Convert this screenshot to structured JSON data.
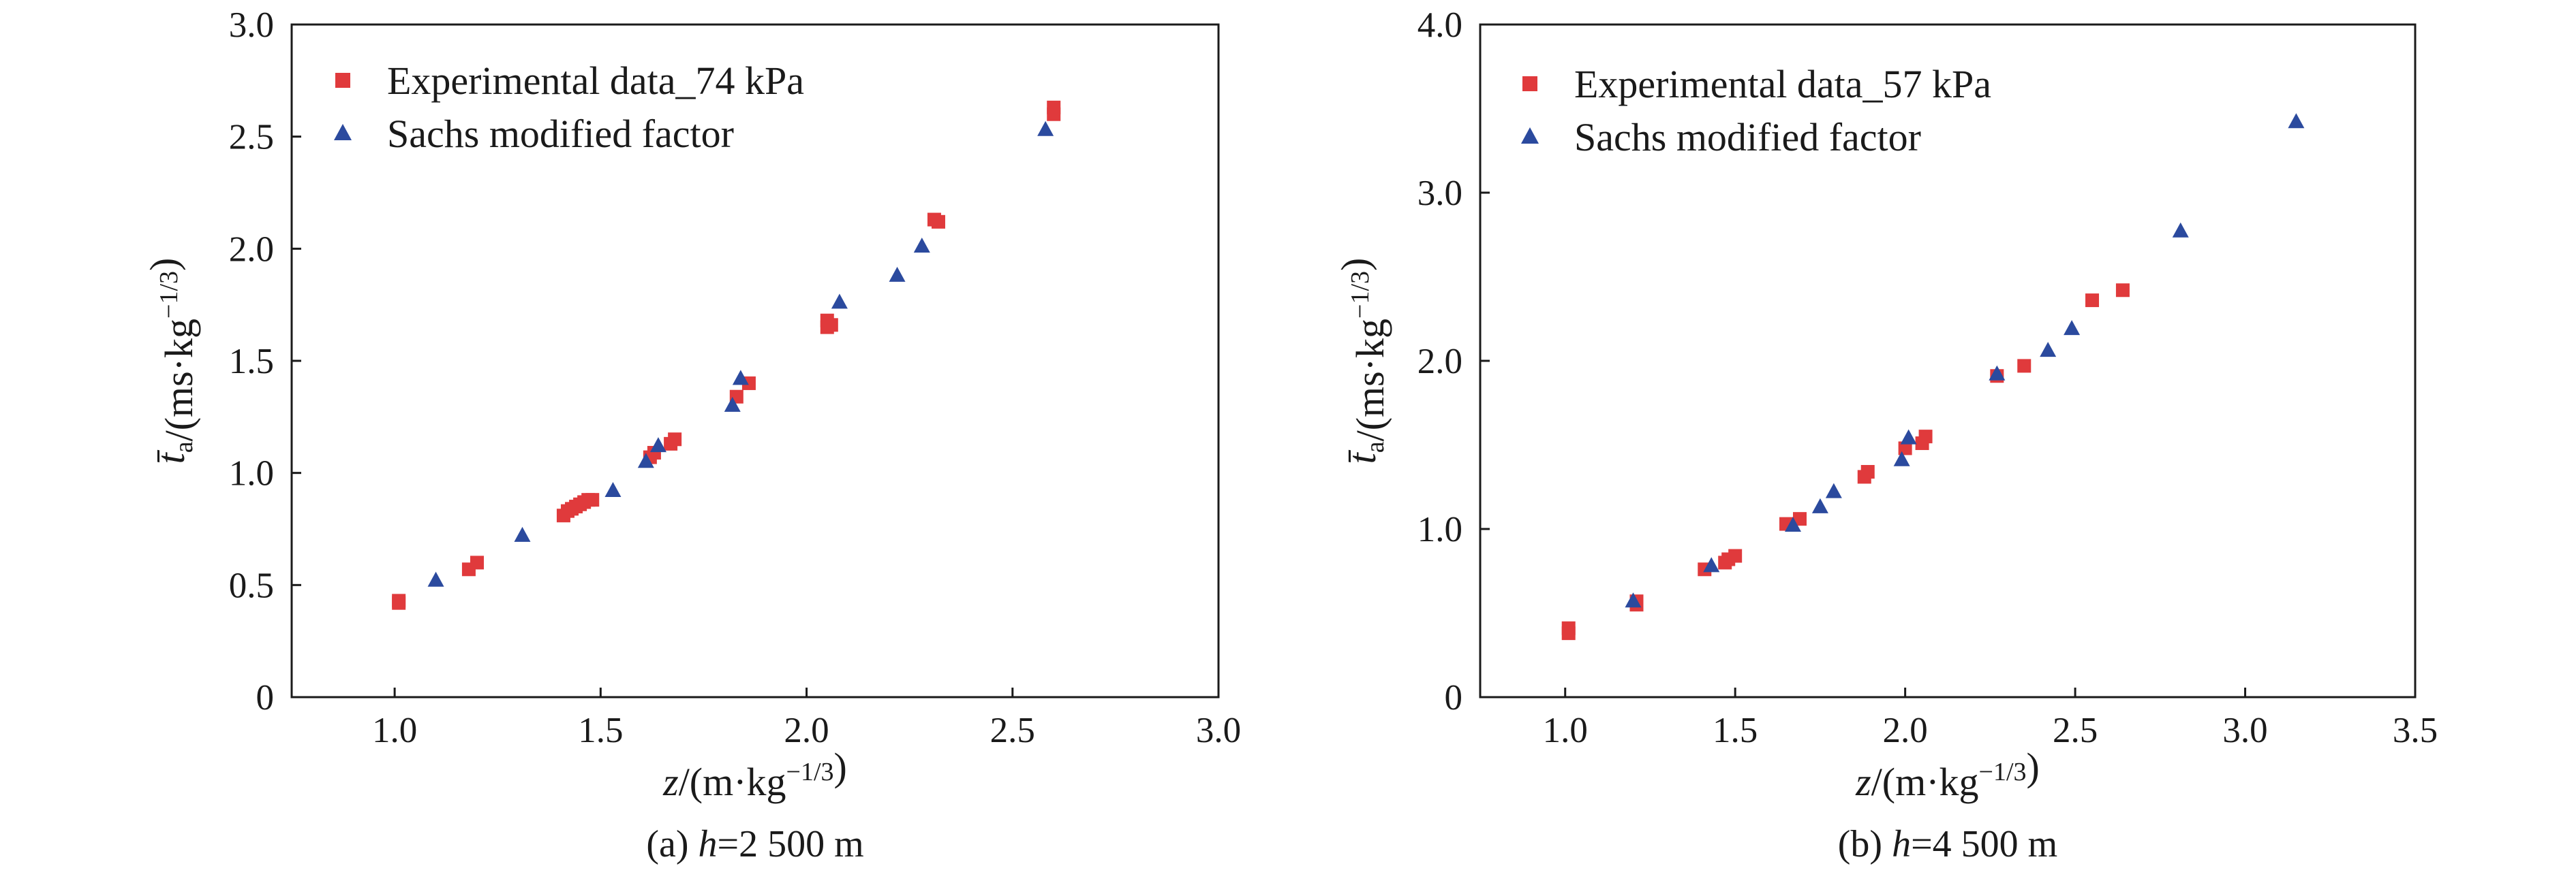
{
  "chart_data": [
    {
      "type": "scatter",
      "caption": "(a) h=2 500 m",
      "caption_prefix": "(a) ",
      "caption_var": "h",
      "caption_value": "=2 500 m",
      "xlabel": "z/(m·kg−1/3)",
      "ylabel": "t̄a/(ms·kg−1/3)",
      "xlim": [
        0.75,
        3.0
      ],
      "ylim": [
        0,
        3.0
      ],
      "xticks": [
        "1.0",
        "1.5",
        "2.0",
        "2.5",
        "3.0"
      ],
      "yticks": [
        "0",
        "0.5",
        "1.0",
        "1.5",
        "2.0",
        "2.5",
        "3.0"
      ],
      "legend_position": "top-left",
      "series": [
        {
          "name": "Experimental data_74 kPa",
          "marker": "square",
          "color": "#e03a3c",
          "points": [
            [
              1.01,
              0.42
            ],
            [
              1.01,
              0.43
            ],
            [
              1.18,
              0.57
            ],
            [
              1.2,
              0.6
            ],
            [
              1.41,
              0.81
            ],
            [
              1.42,
              0.83
            ],
            [
              1.43,
              0.84
            ],
            [
              1.44,
              0.85
            ],
            [
              1.45,
              0.86
            ],
            [
              1.46,
              0.87
            ],
            [
              1.47,
              0.88
            ],
            [
              1.48,
              0.88
            ],
            [
              1.62,
              1.07
            ],
            [
              1.63,
              1.09
            ],
            [
              1.67,
              1.13
            ],
            [
              1.68,
              1.15
            ],
            [
              1.83,
              1.34
            ],
            [
              1.86,
              1.4
            ],
            [
              2.05,
              1.65
            ],
            [
              2.05,
              1.68
            ],
            [
              2.06,
              1.66
            ],
            [
              2.31,
              2.13
            ],
            [
              2.32,
              2.12
            ],
            [
              2.6,
              2.63
            ],
            [
              2.6,
              2.6
            ]
          ]
        },
        {
          "name": "Sachs modified factor",
          "marker": "triangle",
          "color": "#2b4a9e",
          "points": [
            [
              1.1,
              0.52
            ],
            [
              1.31,
              0.72
            ],
            [
              1.53,
              0.92
            ],
            [
              1.61,
              1.05
            ],
            [
              1.64,
              1.12
            ],
            [
              1.82,
              1.3
            ],
            [
              1.84,
              1.42
            ],
            [
              2.08,
              1.76
            ],
            [
              2.22,
              1.88
            ],
            [
              2.28,
              2.01
            ],
            [
              2.58,
              2.53
            ]
          ]
        }
      ]
    },
    {
      "type": "scatter",
      "caption": "(b) h=4 500 m",
      "caption_prefix": "(b) ",
      "caption_var": "h",
      "caption_value": "=4 500 m",
      "xlabel": "z/(m·kg−1/3)",
      "ylabel": "t̄a/(ms·kg−1/3)",
      "xlim": [
        0.75,
        3.5
      ],
      "ylim": [
        0,
        4.0
      ],
      "xticks": [
        "1.0",
        "1.5",
        "2.0",
        "2.5",
        "3.0",
        "3.5"
      ],
      "yticks": [
        "0",
        "1.0",
        "2.0",
        "3.0",
        "4.0"
      ],
      "legend_position": "top-left",
      "series": [
        {
          "name": "Experimental data_57 kPa",
          "marker": "square",
          "color": "#e03a3c",
          "points": [
            [
              1.01,
              0.38
            ],
            [
              1.01,
              0.41
            ],
            [
              1.21,
              0.55
            ],
            [
              1.21,
              0.57
            ],
            [
              1.41,
              0.76
            ],
            [
              1.47,
              0.8
            ],
            [
              1.48,
              0.82
            ],
            [
              1.5,
              0.84
            ],
            [
              1.65,
              1.03
            ],
            [
              1.69,
              1.06
            ],
            [
              1.88,
              1.31
            ],
            [
              1.89,
              1.34
            ],
            [
              2.0,
              1.48
            ],
            [
              2.05,
              1.51
            ],
            [
              2.06,
              1.55
            ],
            [
              2.27,
              1.91
            ],
            [
              2.35,
              1.97
            ],
            [
              2.55,
              2.36
            ],
            [
              2.64,
              2.42
            ]
          ]
        },
        {
          "name": "Sachs modified factor",
          "marker": "triangle",
          "color": "#2b4a9e",
          "points": [
            [
              1.2,
              0.57
            ],
            [
              1.43,
              0.78
            ],
            [
              1.67,
              1.02
            ],
            [
              1.75,
              1.13
            ],
            [
              1.79,
              1.22
            ],
            [
              1.99,
              1.41
            ],
            [
              2.01,
              1.54
            ],
            [
              2.27,
              1.92
            ],
            [
              2.42,
              2.06
            ],
            [
              2.49,
              2.19
            ],
            [
              2.81,
              2.77
            ],
            [
              3.15,
              3.42
            ]
          ]
        }
      ]
    }
  ]
}
